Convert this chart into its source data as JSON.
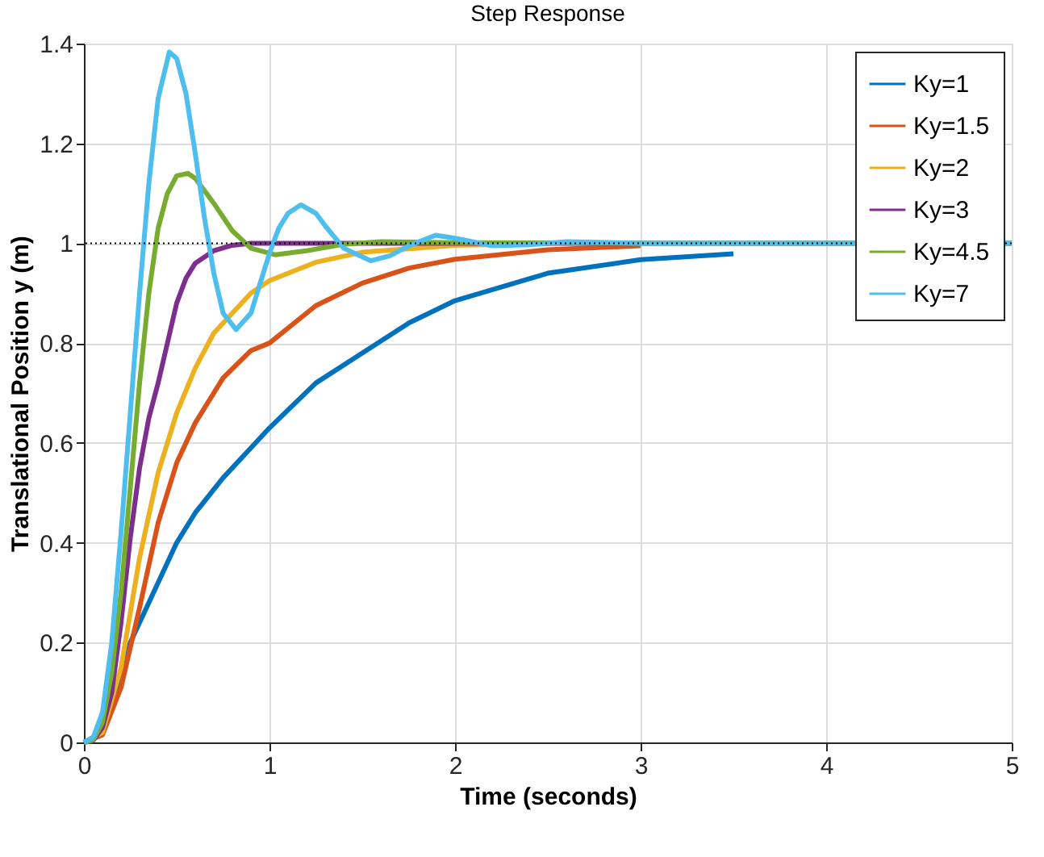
{
  "chart_data": {
    "type": "line",
    "title": "Step Response",
    "xlabel": "Time (seconds)",
    "ylabel": "Translational Position y (m)",
    "xlim": [
      0,
      5
    ],
    "xticks": [
      0,
      1,
      2,
      3,
      4,
      5
    ],
    "ylim": [
      0,
      1.4
    ],
    "yticks": [
      0,
      0.2,
      0.4,
      0.6,
      0.8,
      1,
      1.2,
      1.4
    ],
    "grid": true,
    "legend": "top right",
    "line_style": "solid",
    "ref_lines": [
      {
        "axis": "y",
        "value": 1,
        "color": "#000000",
        "line_style": "dotted"
      }
    ],
    "series": [
      {
        "name": "Ky=1",
        "color": "#0072bd",
        "x": [
          0,
          0.1,
          0.2,
          0.25,
          0.3,
          0.4,
          0.5,
          0.6,
          0.75,
          0.9,
          1.0,
          1.25,
          1.5,
          1.75,
          2.0,
          2.5,
          3.0,
          3.5
        ],
        "values": [
          0,
          0.02,
          0.13,
          0.2,
          0.24,
          0.32,
          0.4,
          0.46,
          0.53,
          0.59,
          0.63,
          0.72,
          0.78,
          0.84,
          0.885,
          0.94,
          0.967,
          0.979
        ]
      },
      {
        "name": "Ky=1.5",
        "color": "#d95319",
        "x": [
          0,
          0.1,
          0.2,
          0.3,
          0.4,
          0.5,
          0.6,
          0.75,
          0.9,
          1.0,
          1.25,
          1.5,
          1.75,
          2.0,
          2.5,
          3.0
        ],
        "values": [
          0,
          0.015,
          0.11,
          0.27,
          0.44,
          0.56,
          0.64,
          0.73,
          0.785,
          0.8,
          0.875,
          0.92,
          0.95,
          0.968,
          0.987,
          0.995
        ]
      },
      {
        "name": "Ky=2",
        "color": "#edb120",
        "x": [
          0,
          0.1,
          0.2,
          0.3,
          0.4,
          0.5,
          0.6,
          0.7,
          0.9,
          1.0,
          1.25,
          1.5,
          2.0,
          2.5
        ],
        "values": [
          0,
          0.02,
          0.15,
          0.37,
          0.54,
          0.66,
          0.75,
          0.82,
          0.9,
          0.925,
          0.962,
          0.982,
          0.996,
          0.999
        ]
      },
      {
        "name": "Ky=3",
        "color": "#7e2f8e",
        "x": [
          0,
          0.05,
          0.1,
          0.15,
          0.2,
          0.25,
          0.3,
          0.35,
          0.4,
          0.45,
          0.5,
          0.55,
          0.6,
          0.7,
          0.8,
          0.9,
          1.0,
          5.0
        ],
        "values": [
          0,
          0.004,
          0.03,
          0.1,
          0.24,
          0.41,
          0.55,
          0.65,
          0.72,
          0.8,
          0.88,
          0.93,
          0.96,
          0.985,
          0.996,
          1.0,
          1.0,
          1.0
        ]
      },
      {
        "name": "Ky=4.5",
        "color": "#77ac30",
        "x": [
          0,
          0.05,
          0.1,
          0.15,
          0.2,
          0.25,
          0.3,
          0.35,
          0.4,
          0.45,
          0.5,
          0.56,
          0.6,
          0.7,
          0.8,
          0.9,
          1.03,
          1.2,
          1.4,
          1.6,
          2.0,
          3.0,
          5.0
        ],
        "values": [
          0,
          0.005,
          0.04,
          0.14,
          0.3,
          0.51,
          0.72,
          0.9,
          1.03,
          1.1,
          1.135,
          1.14,
          1.13,
          1.08,
          1.025,
          0.99,
          0.977,
          0.985,
          0.998,
          1.003,
          1.001,
          1.0,
          1.0
        ]
      },
      {
        "name": "Ky=7",
        "color": "#4dbeee",
        "x": [
          0,
          0.05,
          0.1,
          0.15,
          0.2,
          0.25,
          0.3,
          0.35,
          0.4,
          0.46,
          0.5,
          0.55,
          0.6,
          0.65,
          0.7,
          0.75,
          0.82,
          0.9,
          0.95,
          1.0,
          1.05,
          1.1,
          1.17,
          1.25,
          1.3,
          1.4,
          1.545,
          1.65,
          1.75,
          1.895,
          2.0,
          2.2,
          2.4,
          2.6,
          3.0,
          5.0
        ],
        "values": [
          0,
          0.01,
          0.06,
          0.2,
          0.42,
          0.66,
          0.9,
          1.12,
          1.29,
          1.383,
          1.37,
          1.3,
          1.18,
          1.05,
          0.94,
          0.86,
          0.827,
          0.86,
          0.92,
          0.98,
          1.03,
          1.06,
          1.077,
          1.06,
          1.035,
          0.99,
          0.965,
          0.975,
          0.995,
          1.016,
          1.01,
          0.995,
          0.997,
          1.003,
          1.0,
          1.0
        ]
      }
    ]
  }
}
